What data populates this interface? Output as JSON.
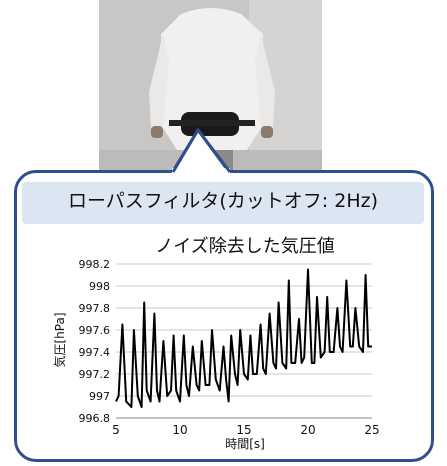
{
  "callout": {
    "title": "ローパスフィルタ(カットオフ: 2Hz)"
  },
  "colors": {
    "frame": "#2e4f8a",
    "header_fill": "#dce6f2",
    "line": "#000000",
    "grid": "#c8c8c8"
  },
  "chart_data": {
    "type": "line",
    "title": "ノイズ除去した気圧値",
    "xlabel": "時間[s]",
    "ylabel": "気圧[hPa]",
    "xlim": [
      5,
      25
    ],
    "ylim": [
      996.8,
      998.2
    ],
    "xticks": [
      5,
      10,
      15,
      20,
      25
    ],
    "yticks": [
      996.8,
      997,
      997.2,
      997.4,
      997.6,
      997.8,
      998,
      998.2
    ],
    "ytick_labels": [
      "996.8",
      "997",
      "997.2",
      "997.4",
      "997.6",
      "997.8",
      "998",
      "998.2"
    ],
    "grid": "horizontal",
    "series": [
      {
        "x": [
          5.0,
          5.2,
          5.5,
          5.8,
          6.2,
          6.4,
          6.7,
          7.0,
          7.2,
          7.4,
          7.7,
          8.0,
          8.2,
          8.4,
          8.7,
          9.0,
          9.3,
          9.5,
          9.7,
          10.0,
          10.3,
          10.5,
          10.7,
          11.0,
          11.3,
          11.5,
          11.7,
          12.0,
          12.3,
          12.5,
          12.8,
          13.1,
          13.4,
          13.6,
          13.8,
          14.0,
          14.3,
          14.5,
          14.7,
          15.0,
          15.3,
          15.5,
          15.7,
          16.0,
          16.3,
          16.5,
          16.7,
          17.0,
          17.3,
          17.5,
          17.7,
          18.0,
          18.3,
          18.5,
          18.7,
          19.0,
          19.3,
          19.5,
          19.7,
          20.0,
          20.3,
          20.5,
          20.7,
          21.0,
          21.3,
          21.5,
          21.7,
          22.0,
          22.3,
          22.5,
          22.7,
          23.0,
          23.3,
          23.5,
          23.7,
          24.0,
          24.3,
          24.5,
          24.7,
          25.0
        ],
        "y": [
          996.95,
          997.0,
          997.65,
          996.95,
          996.9,
          997.6,
          997.0,
          996.9,
          997.85,
          997.05,
          996.95,
          997.75,
          997.05,
          996.95,
          997.5,
          997.0,
          997.05,
          997.55,
          997.05,
          996.95,
          997.55,
          997.1,
          997.0,
          997.45,
          997.1,
          997.05,
          997.5,
          997.1,
          997.1,
          997.6,
          997.15,
          997.05,
          997.45,
          997.15,
          996.95,
          997.55,
          997.2,
          997.1,
          997.6,
          997.2,
          997.15,
          997.55,
          997.2,
          997.2,
          997.65,
          997.25,
          997.2,
          997.75,
          997.3,
          997.25,
          997.85,
          997.3,
          997.25,
          998.05,
          997.3,
          997.3,
          997.7,
          997.3,
          997.35,
          998.15,
          997.3,
          997.3,
          997.9,
          997.35,
          997.4,
          997.9,
          997.4,
          997.4,
          997.8,
          997.45,
          997.4,
          998.05,
          997.45,
          997.45,
          997.8,
          997.45,
          997.4,
          998.1,
          997.45,
          997.45
        ]
      }
    ]
  }
}
